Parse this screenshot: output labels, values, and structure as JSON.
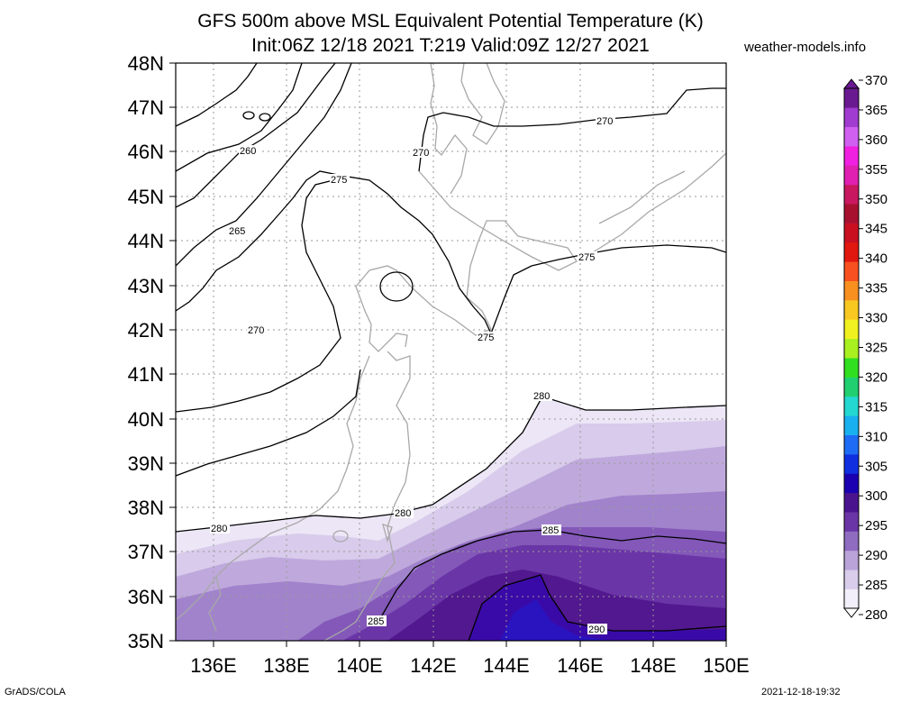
{
  "header": {
    "title_line1": "GFS 500m above MSL Equivalent Potential Temperature (K)",
    "title_line2": "Init:06Z 12/18 2021 T:219 Valid:09Z 12/27 2021",
    "site": "weather-models.info"
  },
  "footer": {
    "left": "GrADS/COLA",
    "right": "2021-12-18-19:32"
  },
  "map": {
    "lat_range": [
      35,
      48
    ],
    "lon_range": [
      135,
      150
    ],
    "lat_ticks": [
      "35N",
      "36N",
      "37N",
      "38N",
      "39N",
      "40N",
      "41N",
      "42N",
      "43N",
      "44N",
      "45N",
      "46N",
      "47N",
      "48N"
    ],
    "lon_ticks": [
      "136E",
      "138E",
      "140E",
      "142E",
      "144E",
      "146E",
      "148E",
      "150E"
    ],
    "contour_labels": [
      "260",
      "265",
      "270",
      "270",
      "270",
      "275",
      "275",
      "275",
      "280",
      "280",
      "280",
      "285",
      "285",
      "290"
    ]
  },
  "colorbar": {
    "levels": [
      "280",
      "285",
      "290",
      "295",
      "300",
      "305",
      "310",
      "315",
      "320",
      "325",
      "330",
      "335",
      "340",
      "345",
      "350",
      "355",
      "360",
      "365",
      "370"
    ],
    "colors": [
      "#f2eefa",
      "#d9cdeb",
      "#b9a3d8",
      "#8f6cc0",
      "#6a35a6",
      "#4a148f",
      "#1a00b0",
      "#1030e0",
      "#1e6cf5",
      "#19b0f0",
      "#22d8d0",
      "#20d070",
      "#30e020",
      "#a8f020",
      "#f0f020",
      "#f8c820",
      "#f89020",
      "#f85020",
      "#e01810",
      "#c81020",
      "#a81030",
      "#c81860",
      "#e020b0",
      "#f020e0",
      "#d060f0",
      "#a03cd0",
      "#6a1a90"
    ]
  }
}
